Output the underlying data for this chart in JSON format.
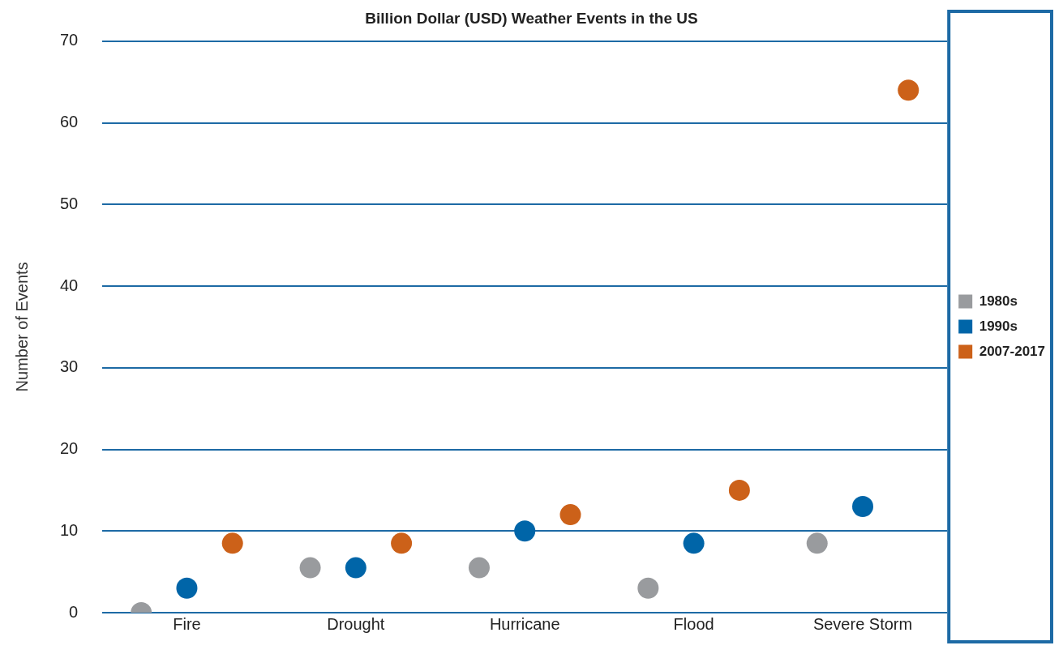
{
  "chart_data": {
    "type": "scatter",
    "title": "Billion Dollar (USD) Weather Events in the US",
    "ylabel": "Number of Events",
    "categories": [
      "Fire",
      "Drought",
      "Hurricane",
      "Flood",
      "Severe Storm"
    ],
    "series": [
      {
        "name": "1980s",
        "color": "#999b9e",
        "values": [
          0,
          5.5,
          5.5,
          3,
          8.5
        ]
      },
      {
        "name": "1990s",
        "color": "#0065a8",
        "values": [
          3,
          5.5,
          10,
          8.5,
          13
        ]
      },
      {
        "name": "2007-2017",
        "color": "#cc6119",
        "values": [
          8.5,
          8.5,
          12,
          15,
          64
        ]
      }
    ],
    "ylim": [
      0,
      70
    ],
    "yticks": [
      0,
      10,
      20,
      30,
      40,
      50,
      60,
      70
    ],
    "grid": "y",
    "legend": "right",
    "marker": "circle"
  }
}
